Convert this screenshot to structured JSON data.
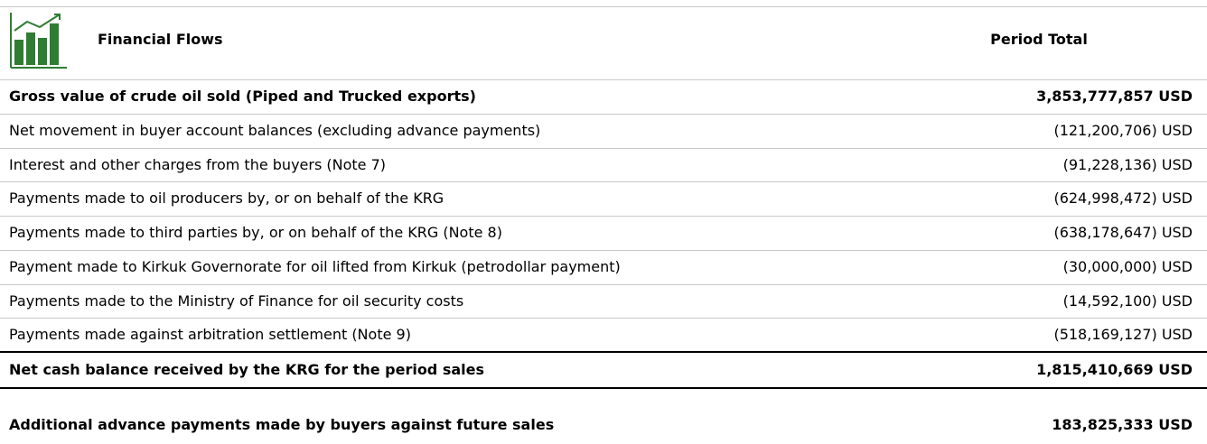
{
  "header": {
    "title": "Financial Flows",
    "column": "Period Total"
  },
  "rows": [
    {
      "label": "Gross value of crude oil sold (Piped and Trucked exports)",
      "value": "3,853,777,857 USD"
    },
    {
      "label": "Net movement in buyer account balances (excluding advance payments)",
      "value": "(121,200,706) USD"
    },
    {
      "label": "Interest and other charges from the buyers (Note 7)",
      "value": "(91,228,136) USD"
    },
    {
      "label": "Payments made to oil producers by, or on behalf of the KRG",
      "value": "(624,998,472) USD"
    },
    {
      "label": "Payments made to third parties by, or on behalf of the KRG (Note 8)",
      "value": "(638,178,647) USD"
    },
    {
      "label": "Payment made to Kirkuk Governorate for oil lifted from Kirkuk (petrodollar payment)",
      "value": "(30,000,000) USD"
    },
    {
      "label": "Payments made to the Ministry of Finance for oil security costs",
      "value": "(14,592,100) USD"
    },
    {
      "label": "Payments made against arbitration settlement (Note 9)",
      "value": "(518,169,127) USD"
    },
    {
      "label": "Net cash balance received by the KRG for the period sales",
      "value": "1,815,410,669 USD"
    },
    {
      "label": "Additional advance payments made by buyers against future sales",
      "value": "183,825,333 USD"
    }
  ]
}
